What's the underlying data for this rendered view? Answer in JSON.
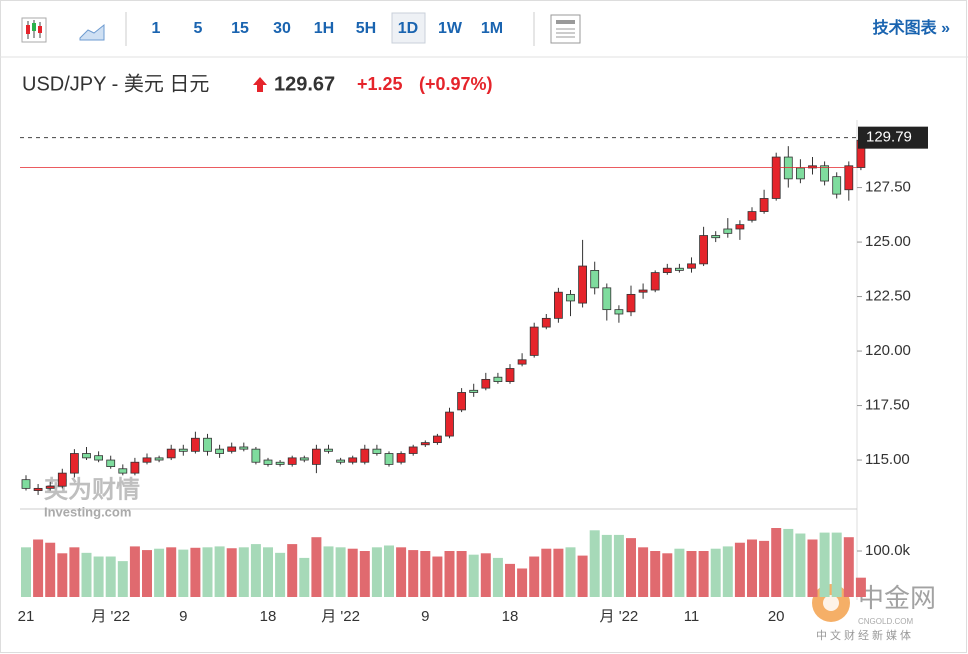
{
  "toolbar": {
    "intervals": [
      "1",
      "5",
      "15",
      "30",
      "1H",
      "5H",
      "1D",
      "1W",
      "1M"
    ],
    "link": "技术图表 »"
  },
  "header": {
    "title": "USD/JPY - 美元 日元",
    "price": "129.67",
    "change": "+1.25",
    "change_pct": "(+0.97%)"
  },
  "watermark": {
    "brand": "英为财情",
    "site": "Investing.com",
    "logo": "中金网",
    "logo_site": "CNGOLD.COM",
    "logo_tagline": "中文财经新媒体"
  },
  "chart_data": {
    "type": "candlestick",
    "categories": [
      "21",
      null,
      null,
      null,
      null,
      null,
      null,
      "月 '22",
      null,
      null,
      null,
      null,
      null,
      "9",
      null,
      null,
      null,
      null,
      null,
      null,
      "18",
      null,
      null,
      null,
      null,
      null,
      "月 '22",
      null,
      null,
      null,
      null,
      null,
      null,
      "9",
      null,
      null,
      null,
      null,
      null,
      null,
      "18",
      null,
      null,
      null,
      null,
      null,
      null,
      null,
      null,
      "月 '22",
      null,
      null,
      null,
      null,
      null,
      "11",
      null,
      null,
      null,
      null,
      null,
      null,
      "20",
      null,
      null,
      null,
      null,
      null,
      null,
      null
    ],
    "open": [
      114.1,
      113.6,
      113.7,
      113.8,
      114.4,
      115.3,
      115.2,
      115.0,
      114.6,
      114.4,
      114.9,
      115.1,
      115.1,
      115.5,
      115.4,
      116.0,
      115.5,
      115.4,
      115.6,
      115.5,
      115.0,
      114.9,
      114.8,
      115.1,
      114.8,
      115.5,
      115.0,
      114.9,
      114.9,
      115.5,
      115.3,
      114.9,
      115.3,
      115.7,
      115.8,
      116.1,
      117.3,
      118.2,
      118.3,
      118.8,
      118.6,
      119.4,
      119.8,
      121.1,
      121.5,
      122.6,
      122.2,
      123.7,
      122.9,
      121.9,
      121.8,
      122.7,
      122.8,
      123.6,
      123.8,
      123.8,
      124.0,
      125.3,
      125.6,
      125.6,
      126.0,
      126.4,
      127.0,
      128.9,
      128.4,
      128.4,
      128.5,
      128.0,
      127.4,
      128.42
    ],
    "high": [
      114.3,
      113.9,
      114.0,
      114.6,
      115.5,
      115.6,
      115.4,
      115.2,
      114.8,
      115.1,
      115.3,
      115.2,
      115.7,
      115.7,
      116.3,
      116.2,
      115.7,
      115.8,
      115.8,
      115.6,
      115.1,
      115.0,
      115.2,
      115.2,
      115.7,
      115.7,
      115.1,
      115.2,
      115.7,
      115.7,
      115.4,
      115.4,
      115.7,
      115.9,
      116.2,
      117.4,
      118.3,
      118.5,
      119.0,
      119.0,
      119.4,
      119.9,
      121.3,
      121.7,
      122.9,
      122.8,
      125.1,
      124.1,
      123.1,
      122.1,
      123.0,
      123.1,
      123.7,
      124.0,
      124.0,
      124.3,
      125.7,
      125.5,
      126.1,
      126.0,
      126.6,
      127.4,
      129.1,
      129.4,
      128.8,
      128.9,
      128.7,
      128.2,
      128.7,
      129.79
    ],
    "low": [
      113.6,
      113.4,
      113.6,
      113.7,
      114.2,
      115.0,
      114.9,
      114.6,
      114.3,
      114.3,
      114.8,
      114.9,
      115.0,
      115.2,
      115.3,
      115.2,
      115.1,
      115.3,
      115.4,
      114.8,
      114.7,
      114.7,
      114.7,
      114.9,
      114.4,
      115.3,
      114.8,
      114.8,
      114.8,
      115.2,
      114.7,
      114.8,
      115.2,
      115.6,
      115.7,
      116.0,
      117.2,
      117.9,
      118.2,
      118.5,
      118.5,
      119.3,
      119.7,
      121.0,
      121.3,
      121.6,
      122.0,
      122.6,
      121.4,
      121.3,
      121.6,
      122.4,
      122.7,
      123.5,
      123.6,
      123.6,
      123.9,
      125.0,
      125.2,
      125.1,
      125.9,
      126.3,
      126.9,
      127.5,
      127.7,
      128.1,
      127.6,
      127.0,
      126.9,
      128.3
    ],
    "close": [
      113.7,
      113.7,
      113.8,
      114.4,
      115.3,
      115.1,
      115.0,
      114.7,
      114.4,
      114.9,
      115.1,
      115.0,
      115.5,
      115.4,
      116.0,
      115.4,
      115.3,
      115.6,
      115.5,
      114.9,
      114.8,
      114.8,
      115.1,
      115.0,
      115.5,
      115.4,
      114.9,
      115.1,
      115.5,
      115.3,
      114.8,
      115.3,
      115.6,
      115.8,
      116.1,
      117.2,
      118.1,
      118.1,
      118.7,
      118.6,
      119.2,
      119.6,
      121.1,
      121.5,
      122.7,
      122.3,
      123.9,
      122.9,
      121.9,
      121.7,
      122.6,
      122.8,
      123.6,
      123.8,
      123.7,
      124.0,
      125.3,
      125.2,
      125.4,
      125.8,
      126.4,
      127.0,
      128.9,
      127.9,
      127.9,
      128.5,
      127.8,
      127.2,
      128.5,
      129.67
    ],
    "volume": [
      108000,
      125000,
      118000,
      95000,
      108000,
      96000,
      88000,
      88000,
      78000,
      110000,
      102000,
      105000,
      108000,
      103000,
      107000,
      108000,
      110000,
      106000,
      108000,
      115000,
      108000,
      96000,
      115000,
      85000,
      130000,
      110000,
      108000,
      105000,
      100000,
      108000,
      112000,
      108000,
      102000,
      100000,
      88000,
      100000,
      100000,
      92000,
      95000,
      85000,
      72000,
      62000,
      88000,
      105000,
      105000,
      108000,
      90000,
      145000,
      135000,
      135000,
      128000,
      108000,
      100000,
      95000,
      105000,
      100000,
      100000,
      105000,
      110000,
      118000,
      125000,
      122000,
      150000,
      148000,
      138000,
      125000,
      140000,
      140000,
      130000,
      42000
    ],
    "up_color": "#e5242b",
    "down_color": "#7fdc9e",
    "up_volume_color": "#e06a6f",
    "down_volume_color": "#a6d9b8",
    "ylim": [
      112.8,
      130.6
    ],
    "yticks": [
      {
        "value": 115,
        "label": "115.00"
      },
      {
        "value": 117.5,
        "label": "117.50"
      },
      {
        "value": 120,
        "label": "120.00"
      },
      {
        "value": 122.5,
        "label": "122.50"
      },
      {
        "value": 125,
        "label": "125.00"
      },
      {
        "value": 127.5,
        "label": "127.50"
      }
    ],
    "price_line": {
      "value": 129.79,
      "label": "129.79"
    },
    "reference_line": 128.42,
    "vlim": [
      0,
      190000
    ],
    "vticks": [
      {
        "value": 100000,
        "label": "100.0k"
      }
    ]
  }
}
